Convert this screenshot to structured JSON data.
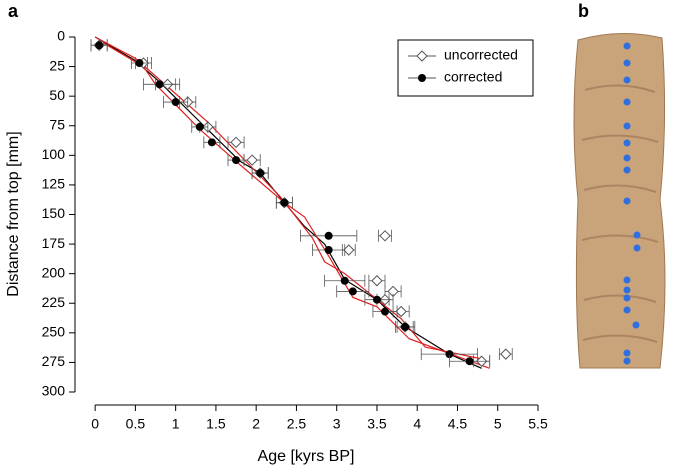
{
  "panel_labels": [
    "a",
    "b"
  ],
  "chart_data": {
    "type": "scatter",
    "x_label": "Age [kyrs BP]",
    "y_label": "Distance from top [mm]",
    "xlim": [
      -0.25,
      5.5
    ],
    "ylim": [
      0,
      300
    ],
    "y_inverted": true,
    "xticks": [
      0,
      0.5,
      1,
      1.5,
      2,
      2.5,
      3,
      3.5,
      4,
      4.5,
      5,
      5.5
    ],
    "yticks": [
      0,
      25,
      50,
      75,
      100,
      125,
      150,
      175,
      200,
      225,
      250,
      275,
      300
    ],
    "legend": "top-right",
    "series": [
      {
        "name": "uncorrected",
        "marker": "diamond",
        "color": "#555555",
        "x": [
          0.05,
          0.6,
          0.9,
          1.15,
          1.4,
          1.75,
          1.95,
          2.05,
          2.35,
          3.6,
          3.15,
          3.5,
          3.7,
          3.6,
          3.8,
          3.85,
          4.8,
          5.1
        ],
        "values": [
          7,
          22,
          40,
          55,
          76,
          89,
          104,
          115,
          140,
          168,
          180,
          206,
          215,
          222,
          232,
          245,
          274,
          268
        ],
        "xerr": [
          0.1,
          0.1,
          0.15,
          0.1,
          0.1,
          0.1,
          0.1,
          0.1,
          0.1,
          0.08,
          0.08,
          0.1,
          0.1,
          0.1,
          0.1,
          0.1,
          0.1,
          0.08
        ]
      },
      {
        "name": "corrected",
        "marker": "circle",
        "color": "#000000",
        "x": [
          0.05,
          0.55,
          0.8,
          1.0,
          1.3,
          1.45,
          1.75,
          2.05,
          2.35,
          2.9,
          2.9,
          3.1,
          3.2,
          3.5,
          3.6,
          3.85,
          4.4,
          4.65
        ],
        "values": [
          7,
          22,
          40,
          55,
          76,
          89,
          104,
          115,
          140,
          168,
          180,
          206,
          215,
          222,
          232,
          245,
          268,
          274
        ],
        "xerr": [
          0.1,
          0.1,
          0.2,
          0.15,
          0.1,
          0.1,
          0.1,
          0.1,
          0.1,
          0.35,
          0.2,
          0.25,
          0.2,
          0.15,
          0.15,
          0.12,
          0.35,
          0.25
        ]
      },
      {
        "marker": "line",
        "color": "#000000",
        "x": [
          0,
          0.5,
          0.8,
          1.35,
          1.8,
          2.05,
          2.35,
          2.6,
          2.85,
          3.1,
          3.5,
          3.85,
          4.4,
          4.8
        ],
        "values": [
          0,
          20,
          38,
          75,
          105,
          115,
          140,
          160,
          175,
          205,
          222,
          245,
          268,
          280
        ]
      },
      {
        "marker": "line",
        "color": "#e02020",
        "x": [
          0.1,
          0.6,
          0.75,
          1.3,
          1.8,
          2.35,
          2.6,
          2.9,
          3.2,
          3.5,
          3.9,
          4.9
        ],
        "values": [
          5,
          25,
          40,
          78,
          108,
          140,
          152,
          185,
          220,
          228,
          255,
          280
        ]
      },
      {
        "marker": "line",
        "color": "#e02020",
        "x": [
          0,
          0.5,
          0.95,
          1.4,
          2.3,
          2.7,
          2.85,
          3.1,
          3.8,
          4.1,
          4.8
        ],
        "values": [
          0,
          18,
          45,
          72,
          135,
          170,
          190,
          200,
          238,
          262,
          272
        ]
      }
    ]
  }
}
